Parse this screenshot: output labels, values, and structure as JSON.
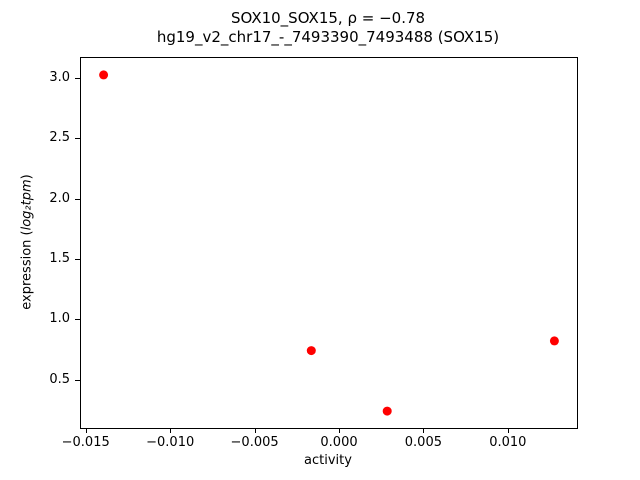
{
  "chart_data": {
    "type": "scatter",
    "title_line1": "SOX10_SOX15, ρ = −0.78",
    "title_line2": "hg19_v2_chr17_-_7493390_7493488 (SOX15)",
    "xlabel": "activity",
    "ylabel_prefix": "expression (",
    "ylabel_math": "log₂tpm",
    "ylabel_suffix": ")",
    "xlim": [
      -0.01534,
      0.01404
    ],
    "ylim": [
      0.11,
      3.17
    ],
    "xticks": [
      -0.015,
      -0.01,
      -0.005,
      0.0,
      0.005,
      0.01
    ],
    "xtick_labels": [
      "−0.015",
      "−0.010",
      "−0.005",
      "0.000",
      "0.005",
      "0.010"
    ],
    "yticks": [
      0.5,
      1.0,
      1.5,
      2.0,
      2.5,
      3.0
    ],
    "ytick_labels": [
      "0.5",
      "1.0",
      "1.5",
      "2.0",
      "2.5",
      "3.0"
    ],
    "marker_color": "#ff0000",
    "marker_radius": 4.5,
    "points": [
      {
        "x": -0.014,
        "y": 3.03
      },
      {
        "x": -0.0017,
        "y": 0.75
      },
      {
        "x": 0.0028,
        "y": 0.25
      },
      {
        "x": 0.0127,
        "y": 0.83
      }
    ],
    "legend": "none",
    "grid": false
  }
}
